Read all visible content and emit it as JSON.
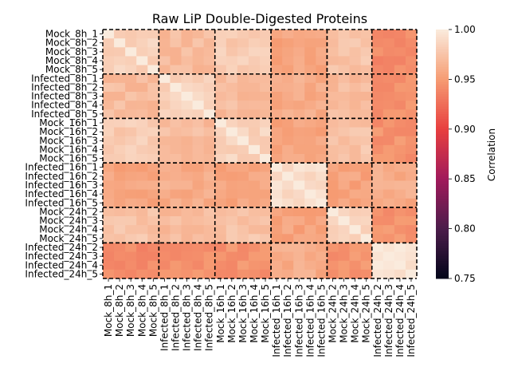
{
  "chart_data": {
    "type": "heatmap",
    "title": "Raw LiP Double-Digested Proteins",
    "colorbar_label": "Correlation",
    "vmin": 0.75,
    "vmax": 1.0,
    "colorbar_ticks": [
      "0.75",
      "0.80",
      "0.85",
      "0.90",
      "0.95",
      "1.00"
    ],
    "colorscale": [
      "#03051a",
      "#4c1d4b",
      "#a11a5b",
      "#e83f3f",
      "#f69c73",
      "#faebdd"
    ],
    "row_labels": [
      "Mock_8h_1",
      "Mock_8h_2",
      "Mock_8h_3",
      "Mock_8h_4",
      "Mock_8h_5",
      "Infected_8h_1",
      "Infected_8h_2",
      "Infected_8h_3",
      "Infected_8h_4",
      "Infected_8h_5",
      "Mock_16h_1",
      "Mock_16h_2",
      "Mock_16h_3",
      "Mock_16h_4",
      "Mock_16h_5",
      "Infected_16h_1",
      "Infected_16h_2",
      "Infected_16h_3",
      "Infected_16h_4",
      "Infected_16h_5",
      "Mock_24h_2",
      "Mock_24h_3",
      "Mock_24h_4",
      "Mock_24h_5",
      "Infected_24h_2",
      "Infected_24h_3",
      "Infected_24h_4",
      "Infected_24h_5"
    ],
    "col_labels": [
      "Mock_8h_1",
      "Mock_8h_2",
      "Mock_8h_3",
      "Mock_8h_4",
      "Mock_8h_5",
      "Infected_8h_1",
      "Infected_8h_2",
      "Infected_8h_3",
      "Infected_8h_4",
      "Infected_8h_5",
      "Mock_16h_1",
      "Mock_16h_2",
      "Mock_16h_3",
      "Mock_16h_4",
      "Mock_16h_5",
      "Infected_16h_1",
      "Infected_16h_2",
      "Infected_16h_3",
      "Infected_16h_4",
      "Infected_16h_5",
      "Mock_24h_2",
      "Mock_24h_3",
      "Mock_24h_4",
      "Mock_24h_5",
      "Infected_24h_2",
      "Infected_24h_3",
      "Infected_24h_4",
      "Infected_24h_5"
    ],
    "group_sizes": [
      5,
      5,
      5,
      5,
      4,
      4
    ],
    "group_block_means": [
      [
        0.985,
        0.97,
        0.98,
        0.955,
        0.975,
        0.94
      ],
      [
        0.97,
        0.985,
        0.97,
        0.96,
        0.97,
        0.945
      ],
      [
        0.98,
        0.97,
        0.985,
        0.955,
        0.975,
        0.945
      ],
      [
        0.955,
        0.96,
        0.955,
        0.99,
        0.955,
        0.96
      ],
      [
        0.975,
        0.97,
        0.975,
        0.955,
        0.985,
        0.945
      ],
      [
        0.94,
        0.945,
        0.945,
        0.96,
        0.945,
        0.995
      ]
    ],
    "grid": false,
    "legend": "colorbar-right"
  }
}
